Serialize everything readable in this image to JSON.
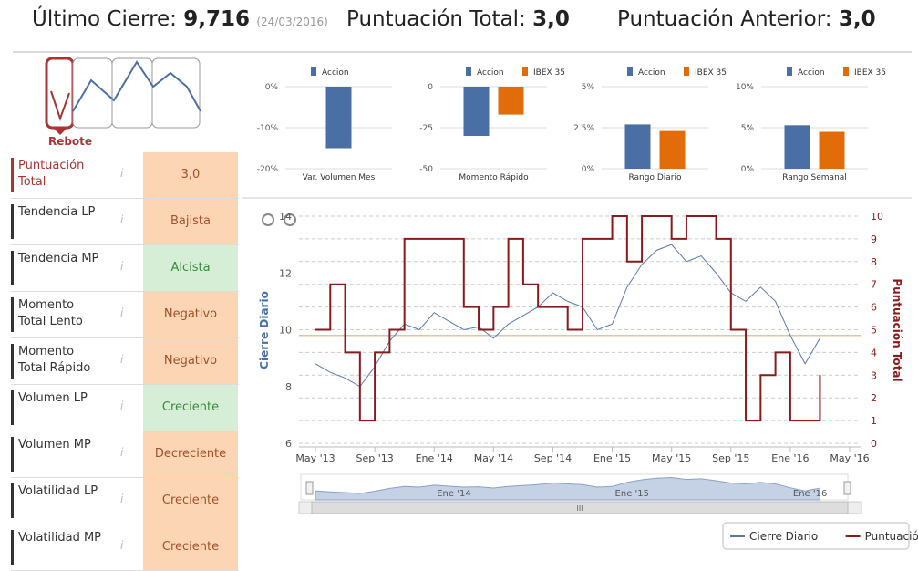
{
  "header": {
    "last_close_label": "Último Cierre:",
    "last_close": "9,716",
    "date": "(24/03/2016)",
    "total_label": "Puntuación Total:",
    "total": "3,0",
    "previous_label": "Puntuación Anterior:",
    "previous": "3,0"
  },
  "pattern": {
    "label": "Rebote"
  },
  "table": {
    "rows": [
      {
        "label": "Puntuación Total",
        "value": "3,0",
        "color": "#fcd5b5",
        "text_color": "#a0522d"
      },
      {
        "label": "Tendencia LP",
        "value": "Bajista",
        "color": "#fcd5b5",
        "text_color": "#a0522d"
      },
      {
        "label": "Tendencia MP",
        "value": "Alcista",
        "color": "#d6eed6",
        "text_color": "#3a8a3a"
      },
      {
        "label": "Momento Total Lento",
        "value": "Negativo",
        "color": "#fcd5b5",
        "text_color": "#a0522d"
      },
      {
        "label": "Momento Total Rápido",
        "value": "Negativo",
        "color": "#fcd5b5",
        "text_color": "#a0522d"
      },
      {
        "label": "Volumen LP",
        "value": "Creciente",
        "color": "#d6eed6",
        "text_color": "#3a8a3a"
      },
      {
        "label": "Volumen MP",
        "value": "Decreciente",
        "color": "#fcd5b5",
        "text_color": "#a0522d"
      },
      {
        "label": "Volatilidad LP",
        "value": "Creciente",
        "color": "#fcd5b5",
        "text_color": "#a0522d"
      },
      {
        "label": "Volatilidad MP",
        "value": "Creciente",
        "color": "#fcd5b5",
        "text_color": "#a0522d"
      }
    ]
  },
  "chart_data": [
    {
      "type": "bar",
      "categories": [
        "Var. Volumen Mes"
      ],
      "series": [
        {
          "name": "Accion",
          "color": "#4a6fa5",
          "values": [
            -15
          ]
        }
      ],
      "ylim": [
        -20,
        0
      ],
      "yticks": [
        {
          "value": 0,
          "label": "0%"
        },
        {
          "value": -10,
          "label": "-10%"
        },
        {
          "value": -20,
          "label": "-20%"
        }
      ],
      "grid": true
    },
    {
      "type": "bar",
      "categories": [
        "Momento Rápido"
      ],
      "series": [
        {
          "name": "Accion",
          "color": "#4a6fa5",
          "values": [
            -30
          ]
        },
        {
          "name": "IBEX 35",
          "color": "#e36c0a",
          "values": [
            -17
          ]
        }
      ],
      "ylim": [
        -50,
        0
      ],
      "yticks": [
        0,
        -25,
        -50
      ],
      "grid": true
    },
    {
      "type": "bar",
      "categories": [
        "Rango Diario"
      ],
      "series": [
        {
          "name": "Accion",
          "color": "#4a6fa5",
          "values": [
            2.7
          ]
        },
        {
          "name": "IBEX 35",
          "color": "#e36c0a",
          "values": [
            2.3
          ]
        }
      ],
      "ylim": [
        0,
        5
      ],
      "yticks": [
        {
          "value": 0,
          "label": "0%"
        },
        {
          "value": 2.5,
          "label": "2.5%"
        },
        {
          "value": 5,
          "label": "5%"
        }
      ],
      "grid": true
    },
    {
      "type": "bar",
      "categories": [
        "Rango Semanal"
      ],
      "series": [
        {
          "name": "Accion",
          "color": "#4a6fa5",
          "values": [
            5.3
          ]
        },
        {
          "name": "IBEX 35",
          "color": "#e36c0a",
          "values": [
            4.5
          ]
        }
      ],
      "ylim": [
        0,
        10
      ],
      "yticks": [
        {
          "value": 0,
          "label": "0%"
        },
        {
          "value": 5,
          "label": "5%"
        },
        {
          "value": 10,
          "label": "10%"
        }
      ],
      "grid": true
    },
    {
      "type": "line",
      "x": [
        "May '13",
        null,
        null,
        null,
        "Sep '13",
        null,
        null,
        null,
        "Ene '14",
        null,
        null,
        null,
        "May '14",
        null,
        null,
        null,
        "Sep '14",
        null,
        null,
        null,
        "Ene '15",
        null,
        null,
        null,
        "May '15",
        null,
        null,
        null,
        "Sep '15",
        null,
        null,
        null,
        "Ene '16",
        null,
        null,
        null,
        "May '16"
      ],
      "ylabel": "Cierre Diario",
      "y2label": "Puntuación Total",
      "ylim": [
        6,
        14
      ],
      "yticks": [
        6,
        8,
        10,
        12,
        14
      ],
      "y2lim": [
        0,
        10
      ],
      "y2ticks": [
        0,
        1,
        2,
        3,
        4,
        5,
        6,
        7,
        8,
        9,
        10
      ],
      "grid": true,
      "reference_line": 9.8,
      "reference_color": "#d8c9a0",
      "series": [
        {
          "name": "Cierre Diario",
          "color": "#5a78ad",
          "values": [
            8.8,
            8.5,
            8.3,
            8.0,
            8.7,
            9.6,
            10.2,
            10.0,
            10.6,
            10.3,
            10.0,
            10.1,
            9.7,
            10.2,
            10.5,
            10.8,
            11.3,
            11.0,
            10.8,
            10.0,
            10.2,
            11.5,
            12.3,
            12.8,
            13.0,
            12.4,
            12.6,
            12.0,
            11.3,
            11.0,
            11.5,
            11.0,
            9.8,
            8.8,
            9.7,
            null,
            null
          ]
        },
        {
          "name": "Puntuación",
          "color": "#8b1a1a",
          "axis": "y2",
          "step": true,
          "values": [
            5,
            7,
            4,
            1,
            4,
            5,
            9,
            9,
            9,
            9,
            6,
            5,
            6,
            9,
            7,
            6,
            6,
            5,
            9,
            9,
            10,
            8,
            10,
            10,
            9,
            10,
            10,
            9,
            5,
            1,
            3,
            4,
            1,
            1,
            3,
            null,
            null
          ]
        }
      ],
      "navigator_labels": [
        "Ene '14",
        "Ene '15",
        "Ene '16"
      ],
      "scrollbar_label": "III",
      "legend": "bottom-right"
    }
  ]
}
